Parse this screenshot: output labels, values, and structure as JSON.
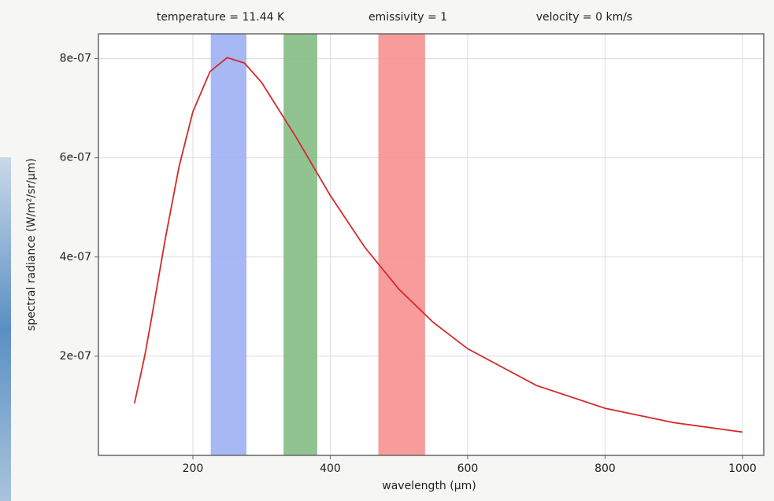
{
  "chart_data": {
    "type": "line",
    "annotations": [
      "temperature = 11.44 K",
      "emissivity = 1",
      "velocity = 0 km/s"
    ],
    "xlabel": "wavelength (µm)",
    "ylabel": "spectral radiance (W/m²/sr/µm)",
    "xlim": [
      62.5,
      1031
    ],
    "ylim": [
      0,
      8.5e-07
    ],
    "xticks": [
      200,
      400,
      600,
      800,
      1000
    ],
    "yticks": [
      {
        "value": 2e-07,
        "label": "2e-07"
      },
      {
        "value": 4e-07,
        "label": "4e-07"
      },
      {
        "value": 6e-07,
        "label": "6e-07"
      },
      {
        "value": 8e-07,
        "label": "8e-07"
      }
    ],
    "grid": true,
    "bands": [
      {
        "xmin": 226,
        "xmax": 278,
        "color": "#9db0f4"
      },
      {
        "xmin": 332,
        "xmax": 381,
        "color": "#84bd84"
      },
      {
        "xmin": 470,
        "xmax": 538,
        "color": "#f79090"
      }
    ],
    "x": [
      115,
      130,
      140,
      160,
      180,
      200,
      225,
      250,
      275,
      300,
      350,
      400,
      450,
      500,
      550,
      600,
      700,
      800,
      900,
      1000
    ],
    "series": [
      {
        "color": "#d42a2a",
        "values": [
          1.05e-07,
          2.01e-07,
          2.78e-07,
          4.38e-07,
          5.83e-07,
          6.93e-07,
          7.74e-07,
          8.02e-07,
          7.91e-07,
          7.52e-07,
          6.42e-07,
          5.24e-07,
          4.2e-07,
          3.35e-07,
          2.68e-07,
          2.15e-07,
          1.41e-07,
          9.5e-08,
          6.6e-08,
          4.7e-08
        ]
      }
    ]
  }
}
